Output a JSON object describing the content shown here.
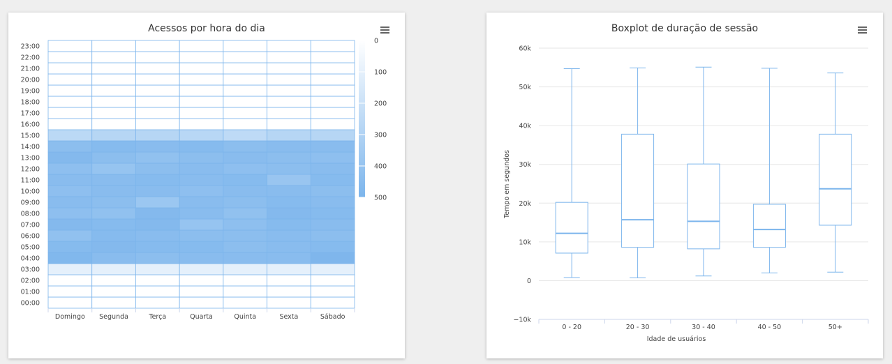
{
  "colors": {
    "min": "#ffffff",
    "max": "#7cb5ec",
    "cellBorder": "#7cb5ec",
    "grid": "#e6e6e6",
    "box": "#7cb5ec"
  },
  "chart_data": [
    {
      "type": "heatmap",
      "title": "Acessos por hora do dia",
      "x_categories": [
        "Domingo",
        "Segunda",
        "Terça",
        "Quarta",
        "Quinta",
        "Sexta",
        "Sábado"
      ],
      "y_categories": [
        "00:00",
        "01:00",
        "02:00",
        "03:00",
        "04:00",
        "05:00",
        "06:00",
        "07:00",
        "08:00",
        "09:00",
        "10:00",
        "11:00",
        "12:00",
        "13:00",
        "14:00",
        "15:00",
        "16:00",
        "17:00",
        "18:00",
        "19:00",
        "20:00",
        "21:00",
        "22:00",
        "23:00"
      ],
      "values_by_hour": [
        [
          0,
          0,
          0,
          0,
          0,
          0,
          0
        ],
        [
          0,
          0,
          0,
          0,
          0,
          0,
          0
        ],
        [
          0,
          0,
          0,
          0,
          0,
          0,
          0
        ],
        [
          100,
          100,
          100,
          100,
          100,
          100,
          100
        ],
        [
          480,
          450,
          440,
          450,
          450,
          450,
          490
        ],
        [
          460,
          470,
          460,
          460,
          440,
          450,
          460
        ],
        [
          420,
          460,
          450,
          440,
          440,
          450,
          440
        ],
        [
          470,
          460,
          470,
          400,
          430,
          460,
          450
        ],
        [
          430,
          420,
          470,
          450,
          420,
          470,
          460
        ],
        [
          450,
          440,
          380,
          450,
          440,
          460,
          450
        ],
        [
          430,
          450,
          450,
          430,
          450,
          450,
          440
        ],
        [
          450,
          450,
          460,
          450,
          460,
          390,
          460
        ],
        [
          430,
          400,
          440,
          450,
          430,
          440,
          450
        ],
        [
          470,
          440,
          420,
          440,
          450,
          440,
          430
        ],
        [
          440,
          460,
          450,
          460,
          440,
          450,
          450
        ],
        [
          260,
          280,
          280,
          270,
          250,
          280,
          280
        ],
        [
          0,
          0,
          0,
          0,
          0,
          0,
          0
        ],
        [
          0,
          0,
          0,
          0,
          0,
          0,
          0
        ],
        [
          0,
          0,
          0,
          0,
          0,
          0,
          0
        ],
        [
          0,
          0,
          0,
          0,
          0,
          0,
          0
        ],
        [
          0,
          0,
          0,
          0,
          0,
          0,
          0
        ],
        [
          0,
          0,
          0,
          0,
          0,
          0,
          0
        ],
        [
          0,
          0,
          0,
          0,
          0,
          0,
          0
        ],
        [
          0,
          0,
          0,
          0,
          0,
          0,
          0
        ]
      ],
      "colorAxis": {
        "min": 0,
        "max": 500,
        "ticks": [
          0,
          100,
          200,
          300,
          400,
          500
        ]
      }
    },
    {
      "type": "boxplot",
      "title": "Boxplot de duração de sessão",
      "xlabel": "Idade de usuários",
      "ylabel": "Tempo em segundos",
      "categories": [
        "0 - 20",
        "20 - 30",
        "30 - 40",
        "40 - 50",
        "50+"
      ],
      "ylim": [
        -10000,
        60000
      ],
      "yticks": [
        -10000,
        0,
        10000,
        20000,
        30000,
        40000,
        50000,
        60000
      ],
      "ytick_labels": [
        "−10k",
        "0",
        "10k",
        "20k",
        "30k",
        "40k",
        "50k",
        "60k"
      ],
      "boxes": [
        {
          "low": 800,
          "q1": 7100,
          "median": 12200,
          "q3": 20200,
          "high": 54700
        },
        {
          "low": 700,
          "q1": 8600,
          "median": 15700,
          "q3": 37800,
          "high": 54900
        },
        {
          "low": 1200,
          "q1": 8200,
          "median": 15300,
          "q3": 30100,
          "high": 55100
        },
        {
          "low": 2000,
          "q1": 8600,
          "median": 13200,
          "q3": 19700,
          "high": 54800
        },
        {
          "low": 2200,
          "q1": 14300,
          "median": 23700,
          "q3": 37800,
          "high": 53600
        }
      ]
    }
  ]
}
